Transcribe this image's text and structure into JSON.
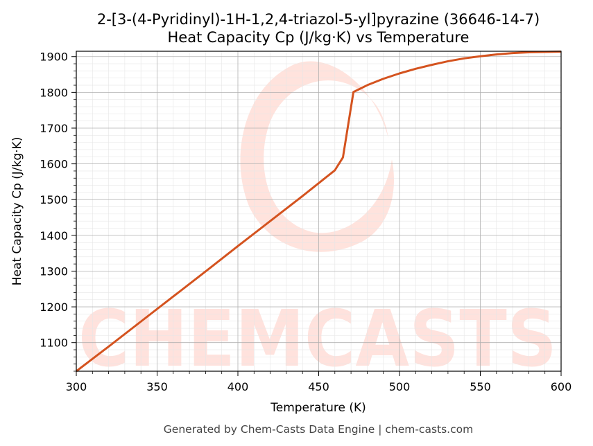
{
  "chart_data": {
    "type": "line",
    "title": "2-[3-(4-Pyridinyl)-1H-1,2,4-triazol-5-yl]pyrazine (36646-14-7)",
    "subtitle": "Heat Capacity Cp (J/kg·K) vs Temperature",
    "xlabel": "Temperature (K)",
    "ylabel": "Heat Capacity Cp (J/kg·K)",
    "xlim": [
      300,
      600
    ],
    "ylim": [
      1020,
      1915
    ],
    "xticks": [
      300,
      350,
      400,
      450,
      500,
      550,
      600
    ],
    "yticks": [
      1100,
      1200,
      1300,
      1400,
      1500,
      1600,
      1700,
      1800,
      1900
    ],
    "grid": true,
    "series": [
      {
        "color": "#d4531f",
        "x": [
          300,
          320,
          340,
          360,
          380,
          400,
          420,
          440,
          460,
          465,
          471.5,
          480,
          490,
          500,
          510,
          520,
          530,
          540,
          550,
          560,
          570,
          580,
          590,
          600
        ],
        "y": [
          1020,
          1089,
          1159,
          1229,
          1299,
          1370,
          1440,
          1510,
          1582,
          1618,
          1801,
          1820,
          1838,
          1853,
          1866,
          1877,
          1887,
          1895,
          1901,
          1906,
          1910,
          1912,
          1913,
          1914
        ]
      }
    ]
  },
  "footer": "Generated by Chem-Casts Data Engine | chem-casts.com",
  "watermark": "CHEMCASTS"
}
